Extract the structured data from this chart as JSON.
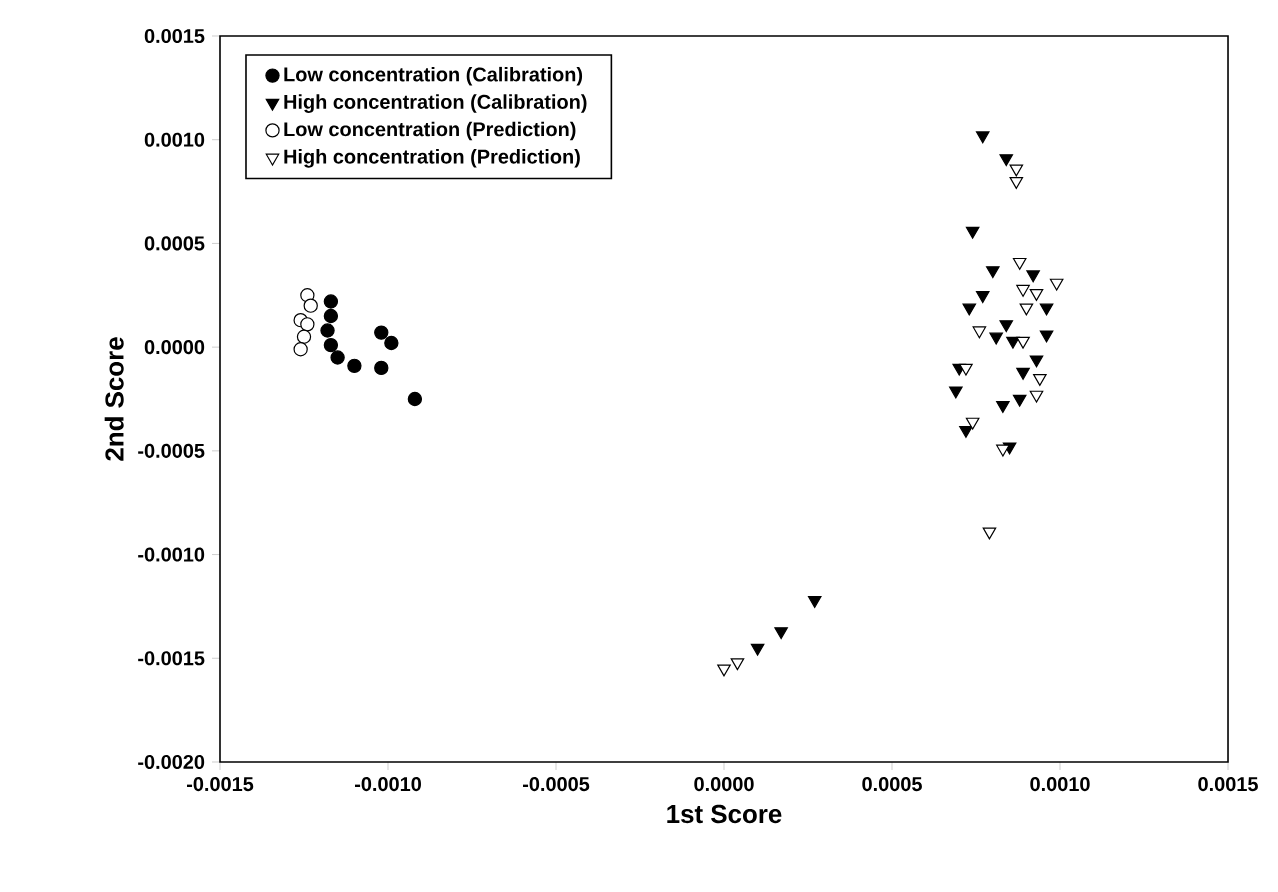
{
  "chart_data": {
    "type": "scatter",
    "xlabel": "1st Score",
    "ylabel": "2nd Score",
    "xlim": [
      -0.0015,
      0.0015
    ],
    "ylim": [
      -0.002,
      0.0015
    ],
    "xticks": [
      {
        "value": -0.0015,
        "label": "-0.0015"
      },
      {
        "value": -0.001,
        "label": "-0.0010"
      },
      {
        "value": -0.0005,
        "label": "-0.0005"
      },
      {
        "value": 0,
        "label": "0.0000"
      },
      {
        "value": 0.0005,
        "label": "0.0005"
      },
      {
        "value": 0.001,
        "label": "0.0010"
      },
      {
        "value": 0.0015,
        "label": "0.0015"
      }
    ],
    "yticks": [
      {
        "value": -0.002,
        "label": "-0.0020"
      },
      {
        "value": -0.0015,
        "label": "-0.0015"
      },
      {
        "value": -0.001,
        "label": "-0.0010"
      },
      {
        "value": -0.0005,
        "label": "-0.0005"
      },
      {
        "value": 0,
        "label": "0.0000"
      },
      {
        "value": 0.0005,
        "label": "0.0005"
      },
      {
        "value": 0.001,
        "label": "0.0010"
      },
      {
        "value": 0.0015,
        "label": "0.0015"
      }
    ],
    "legend": "top left",
    "series": [
      {
        "name": "Low concentration (Calibration)",
        "color": "#000000",
        "marker": "circle",
        "x": [
          -0.00117,
          -0.00117,
          -0.00118,
          -0.00117,
          -0.00115,
          -0.0011,
          -0.00102,
          -0.00099,
          -0.00102,
          -0.00092
        ],
        "values": [
          0.00022,
          0.00015,
          8e-05,
          1e-05,
          -5e-05,
          -9e-05,
          7e-05,
          2e-05,
          -0.0001,
          -0.00025
        ]
      },
      {
        "name": "High concentration (Calibration)",
        "color": "#000000",
        "marker": "triangle",
        "x": [
          0.00077,
          0.00084,
          0.00074,
          0.0008,
          0.00077,
          0.00073,
          0.00092,
          0.00096,
          0.00084,
          0.00081,
          0.00086,
          0.00096,
          0.00093,
          0.00089,
          0.0007,
          0.00069,
          0.00083,
          0.00088,
          0.00072,
          0.00085,
          0.0001,
          0.00017,
          0.00027
        ],
        "values": [
          0.00102,
          0.00091,
          0.00056,
          0.00037,
          0.00025,
          0.00019,
          0.00035,
          0.00019,
          0.00011,
          5e-05,
          3e-05,
          6e-05,
          -6e-05,
          -0.00012,
          -0.0001,
          -0.00021,
          -0.00028,
          -0.00025,
          -0.0004,
          -0.00048,
          -0.00145,
          -0.00137,
          -0.00122
        ]
      },
      {
        "name": "Low concentration (Prediction)",
        "color": "#ffffff",
        "marker": "circle",
        "x": [
          -0.00124,
          -0.00123,
          -0.00126,
          -0.00124,
          -0.00125,
          -0.00126
        ],
        "values": [
          0.00025,
          0.0002,
          0.00013,
          0.00011,
          5e-05,
          -1e-05
        ]
      },
      {
        "name": "High concentration (Prediction)",
        "color": "#ffffff",
        "marker": "triangle",
        "x": [
          0.00087,
          0.00087,
          0.00088,
          0.00099,
          0.00093,
          0.0009,
          0.00089,
          0.00076,
          0.00089,
          0.00094,
          0.00093,
          0.00072,
          0.00074,
          0.00083,
          0.00079,
          0.0,
          4e-05
        ],
        "values": [
          0.00086,
          0.0008,
          0.00041,
          0.00031,
          0.00026,
          0.00019,
          0.00028,
          8e-05,
          3e-05,
          -0.00015,
          -0.00023,
          -0.0001,
          -0.00036,
          -0.00049,
          -0.00089,
          -0.00155,
          -0.00152
        ]
      }
    ]
  }
}
